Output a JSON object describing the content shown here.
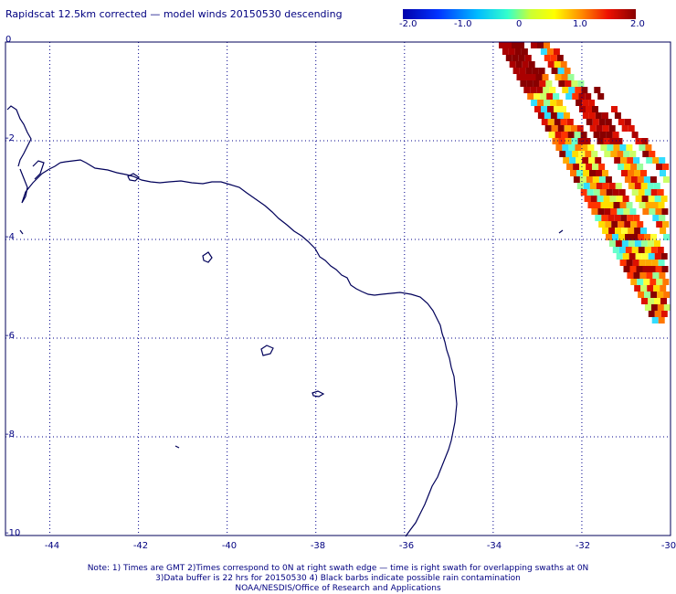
{
  "title": "Rapidscat 12.5km corrected — model winds 20150530 descending",
  "colorbar": {
    "labels": [
      "-2.0",
      "-1.0",
      "0",
      "1.0",
      "2.0"
    ],
    "min": -2.0,
    "max": 2.0
  },
  "map": {
    "lon_range": [
      -45,
      -30
    ],
    "lat_range": [
      -10,
      0
    ],
    "x_tick_labels": [
      "-44",
      "-42",
      "-40",
      "-38",
      "-36",
      "-34",
      "-32",
      "-30"
    ],
    "y_tick_labels": [
      "0",
      "-2",
      "-4",
      "-6",
      "-8",
      "-10"
    ],
    "grid": true,
    "coastline_color": "#00005a",
    "grid_color": "#00008b"
  },
  "footer": {
    "line1": "Note: 1) Times are GMT 2)Times correspond to 0N at right swath edge — time is right swath for overlapping swaths at 0N",
    "line2": "3)Data buffer is 22 hrs for 20150530 4) Black barbs indicate possible rain contamination",
    "line3": "NOAA/NESDIS/Office of Research and Applications"
  }
}
